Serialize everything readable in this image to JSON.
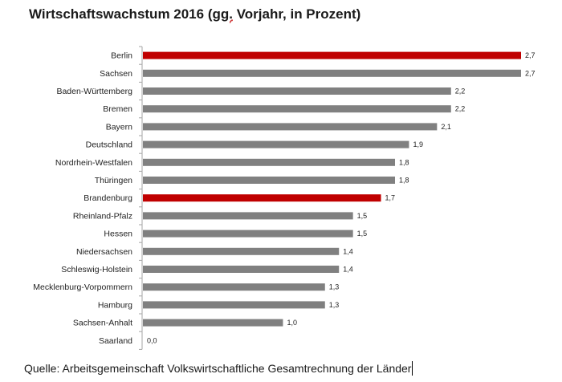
{
  "chart_data": {
    "type": "bar",
    "orientation": "horizontal",
    "title": "Wirtschaftswachstum 2016 (gg. Vorjahr, in Prozent)",
    "source": "Quelle: Arbeitsgemeinschaft Volkswirtschaftliche Gesamtrechnung der Länder",
    "categories": [
      "Berlin",
      "Sachsen",
      "Baden-Württemberg",
      "Bremen",
      "Bayern",
      "Deutschland",
      "Nordrhein-Westfalen",
      "Thüringen",
      "Brandenburg",
      "Rheinland-Pfalz",
      "Hessen",
      "Niedersachsen",
      "Schleswig-Holstein",
      "Mecklenburg-Vorpommern",
      "Hamburg",
      "Sachsen-Anhalt",
      "Saarland"
    ],
    "values": [
      2.7,
      2.7,
      2.2,
      2.2,
      2.1,
      1.9,
      1.8,
      1.8,
      1.7,
      1.5,
      1.5,
      1.4,
      1.4,
      1.3,
      1.3,
      1.0,
      0.0
    ],
    "value_labels": [
      "2,7",
      "2,7",
      "2,2",
      "2,2",
      "2,1",
      "1,9",
      "1,8",
      "1,8",
      "1,7",
      "1,5",
      "1,5",
      "1,4",
      "1,4",
      "1,3",
      "1,3",
      "1,0",
      "0,0"
    ],
    "highlighted": [
      "Berlin",
      "Brandenburg"
    ],
    "colors": {
      "default": "#808080",
      "highlight": "#c00000",
      "axis": "#a6a6a6"
    },
    "xlim": [
      0,
      2.7
    ],
    "grid": false,
    "legend": "none"
  }
}
